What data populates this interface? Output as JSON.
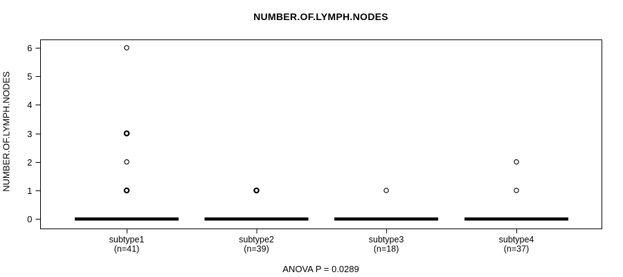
{
  "chart_data": {
    "type": "boxplot",
    "title": "NUMBER.OF.LYMPH.NODES",
    "ylabel": "NUMBER.OF.LYMPH.NODES",
    "footer": "ANOVA P = 0.0289",
    "p_value": "0.0289",
    "ylim": [
      0,
      6
    ],
    "yticks": [
      0,
      1,
      2,
      3,
      4,
      5,
      6
    ],
    "grid": false,
    "colors": {
      "line": "#000000",
      "background": "#ffffff",
      "point_stroke": "#000000"
    },
    "groups": [
      {
        "label": "subtype1",
        "sublabel": "(n=41)",
        "n": 41,
        "box": {
          "median": 0,
          "q1": 0,
          "q3": 0,
          "whisker_low": 0,
          "whisker_high": 0
        },
        "outliers": [
          {
            "value": 6,
            "overplotted": false
          },
          {
            "value": 3,
            "overplotted": true
          },
          {
            "value": 2,
            "overplotted": false
          },
          {
            "value": 1,
            "overplotted": true
          }
        ]
      },
      {
        "label": "subtype2",
        "sublabel": "(n=39)",
        "n": 39,
        "box": {
          "median": 0,
          "q1": 0,
          "q3": 0,
          "whisker_low": 0,
          "whisker_high": 0
        },
        "outliers": [
          {
            "value": 1,
            "overplotted": true
          }
        ]
      },
      {
        "label": "subtype3",
        "sublabel": "(n=18)",
        "n": 18,
        "box": {
          "median": 0,
          "q1": 0,
          "q3": 0,
          "whisker_low": 0,
          "whisker_high": 0
        },
        "outliers": [
          {
            "value": 1,
            "overplotted": false
          }
        ]
      },
      {
        "label": "subtype4",
        "sublabel": "(n=37)",
        "n": 37,
        "box": {
          "median": 0,
          "q1": 0,
          "q3": 0,
          "whisker_low": 0,
          "whisker_high": 0
        },
        "outliers": [
          {
            "value": 2,
            "overplotted": false
          },
          {
            "value": 1,
            "overplotted": false
          }
        ]
      }
    ]
  }
}
